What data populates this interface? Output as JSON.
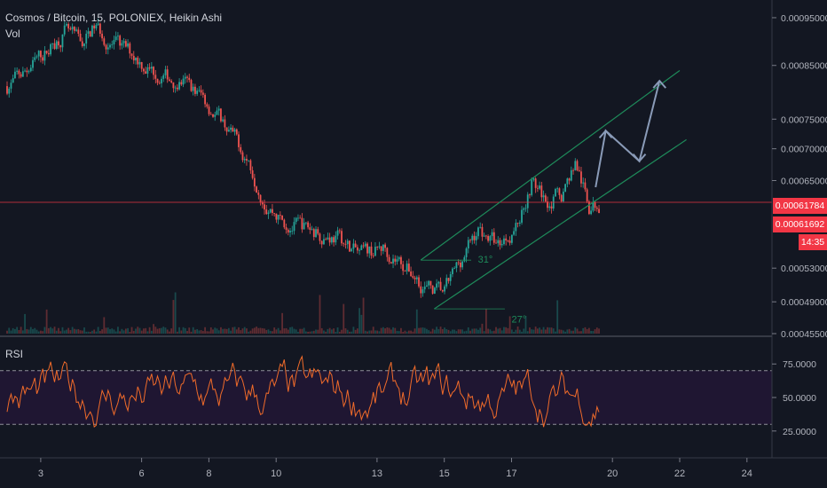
{
  "header": {
    "title": "Cosmos / Bitcoin, 15, POLONIEX, Heikin Ashi",
    "volume_label": "Vol"
  },
  "price_tags": {
    "current": "0.00061784",
    "second": "0.00061692",
    "countdown": "14:35"
  },
  "colors": {
    "background": "#131722",
    "up": "#26a69a",
    "down": "#ef5350",
    "channel": "#1e8a5a",
    "arrows": "#8a9bb8",
    "rsi_line": "#f06b2a",
    "rsi_band": "#2a1540",
    "price_line": "#f23645"
  },
  "chart_data": [
    {
      "type": "candlestick",
      "title": "Cosmos / Bitcoin, 15, POLONIEX, Heikin Ashi",
      "x_ticks": [
        "3",
        "6",
        "8",
        "10",
        "13",
        "15",
        "17",
        "20",
        "22",
        "24"
      ],
      "y_ticks": [
        "0.00095000",
        "0.00085000",
        "0.00075000",
        "0.00070000",
        "0.00065000",
        "0.00053000",
        "0.00049000",
        "0.00045500"
      ],
      "y_scale": "log",
      "ylim": [
        0.000455,
        0.00099
      ],
      "current_price": 0.00061784,
      "price_path": [
        {
          "day": 2.0,
          "price": 0.00081
        },
        {
          "day": 2.6,
          "price": 0.00084
        },
        {
          "day": 3.2,
          "price": 0.00088
        },
        {
          "day": 3.7,
          "price": 0.00092
        },
        {
          "day": 4.2,
          "price": 0.00089
        },
        {
          "day": 4.6,
          "price": 0.00093
        },
        {
          "day": 5.2,
          "price": 0.00089
        },
        {
          "day": 5.8,
          "price": 0.00087
        },
        {
          "day": 6.5,
          "price": 0.00083
        },
        {
          "day": 7.2,
          "price": 0.00082
        },
        {
          "day": 7.8,
          "price": 0.00079
        },
        {
          "day": 8.5,
          "price": 0.00074
        },
        {
          "day": 9.2,
          "price": 0.00068
        },
        {
          "day": 9.7,
          "price": 0.00062
        },
        {
          "day": 10.2,
          "price": 0.00059
        },
        {
          "day": 11.0,
          "price": 0.00058
        },
        {
          "day": 11.8,
          "price": 0.00057
        },
        {
          "day": 12.5,
          "price": 0.000545
        },
        {
          "day": 13.2,
          "price": 0.000555
        },
        {
          "day": 13.8,
          "price": 0.000535
        },
        {
          "day": 14.5,
          "price": 0.000505
        },
        {
          "day": 15.0,
          "price": 0.0005
        },
        {
          "day": 15.5,
          "price": 0.00054
        },
        {
          "day": 16.0,
          "price": 0.00058
        },
        {
          "day": 16.6,
          "price": 0.00056
        },
        {
          "day": 17.2,
          "price": 0.00059
        },
        {
          "day": 17.6,
          "price": 0.00065
        },
        {
          "day": 18.0,
          "price": 0.00062
        },
        {
          "day": 18.5,
          "price": 0.00063
        },
        {
          "day": 18.9,
          "price": 0.00068
        },
        {
          "day": 19.3,
          "price": 0.00061
        },
        {
          "day": 19.6,
          "price": 0.000618
        }
      ],
      "channel": {
        "upper": [
          {
            "day": 14.3,
            "price": 0.00054
          },
          {
            "day": 22.0,
            "price": 0.00084
          }
        ],
        "lower": [
          {
            "day": 14.7,
            "price": 0.000482
          },
          {
            "day": 22.2,
            "price": 0.000715
          }
        ]
      },
      "annotations": [
        {
          "text": "31°",
          "day": 16.0,
          "price": 0.000537
        },
        {
          "text": "27°",
          "day": 17.0,
          "price": 0.000467
        }
      ]
    },
    {
      "type": "line",
      "title": "RSI",
      "y_ticks": [
        "75.0000",
        "50.0000",
        "25.0000"
      ],
      "ylim": [
        5,
        95
      ],
      "bands": [
        30,
        70
      ]
    }
  ]
}
